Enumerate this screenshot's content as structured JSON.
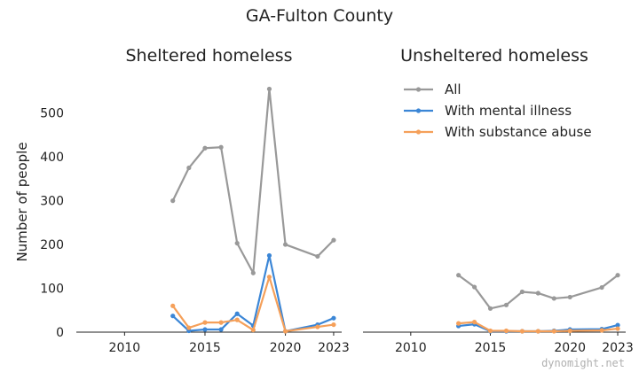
{
  "chart_data": {
    "type": "line",
    "suptitle": "GA-Fulton County",
    "ylabel": "Number of people",
    "xlim": [
      2007,
      2023.5
    ],
    "ylim": [
      0,
      560
    ],
    "xticks": [
      2010,
      2015,
      2020,
      2023
    ],
    "yticks": [
      0,
      100,
      200,
      300,
      400,
      500
    ],
    "grid": false,
    "legend": {
      "placement": "top-right-panel",
      "entries": [
        "All",
        "With mental illness",
        "With substance abuse"
      ]
    },
    "colors": {
      "All": "#999999",
      "With mental illness": "#3b86d6",
      "With substance abuse": "#f5a05a"
    },
    "panels": [
      {
        "title": "Sheltered homeless",
        "series": [
          {
            "name": "All",
            "x": [
              2013,
              2014,
              2015,
              2016,
              2017,
              2018,
              2019,
              2020,
              2022,
              2023
            ],
            "y": [
              300,
              375,
              420,
              422,
              203,
              135,
              555,
              200,
              173,
              210
            ]
          },
          {
            "name": "With mental illness",
            "x": [
              2013,
              2014,
              2015,
              2016,
              2017,
              2018,
              2019,
              2020,
              2022,
              2023
            ],
            "y": [
              37,
              3,
              6,
              6,
              42,
              15,
              175,
              2,
              17,
              32
            ]
          },
          {
            "name": "With substance abuse",
            "x": [
              2013,
              2014,
              2015,
              2016,
              2017,
              2018,
              2019,
              2020,
              2022,
              2023
            ],
            "y": [
              60,
              10,
              22,
              22,
              28,
              5,
              126,
              2,
              12,
              17
            ]
          }
        ]
      },
      {
        "title": "Unsheltered homeless",
        "series": [
          {
            "name": "All",
            "x": [
              2013,
              2014,
              2015,
              2016,
              2017,
              2018,
              2019,
              2020,
              2022,
              2023
            ],
            "y": [
              130,
              103,
              54,
              62,
              92,
              89,
              77,
              80,
              102,
              130
            ]
          },
          {
            "name": "With mental illness",
            "x": [
              2013,
              2014,
              2015,
              2016,
              2017,
              2018,
              2019,
              2020,
              2022,
              2023
            ],
            "y": [
              14,
              18,
              2,
              2,
              2,
              2,
              3,
              6,
              7,
              16
            ]
          },
          {
            "name": "With substance abuse",
            "x": [
              2013,
              2014,
              2015,
              2016,
              2017,
              2018,
              2019,
              2020,
              2022,
              2023
            ],
            "y": [
              20,
              23,
              3,
              3,
              2,
              2,
              2,
              3,
              4,
              8
            ]
          }
        ]
      }
    ]
  },
  "watermark": "dynomight.net"
}
